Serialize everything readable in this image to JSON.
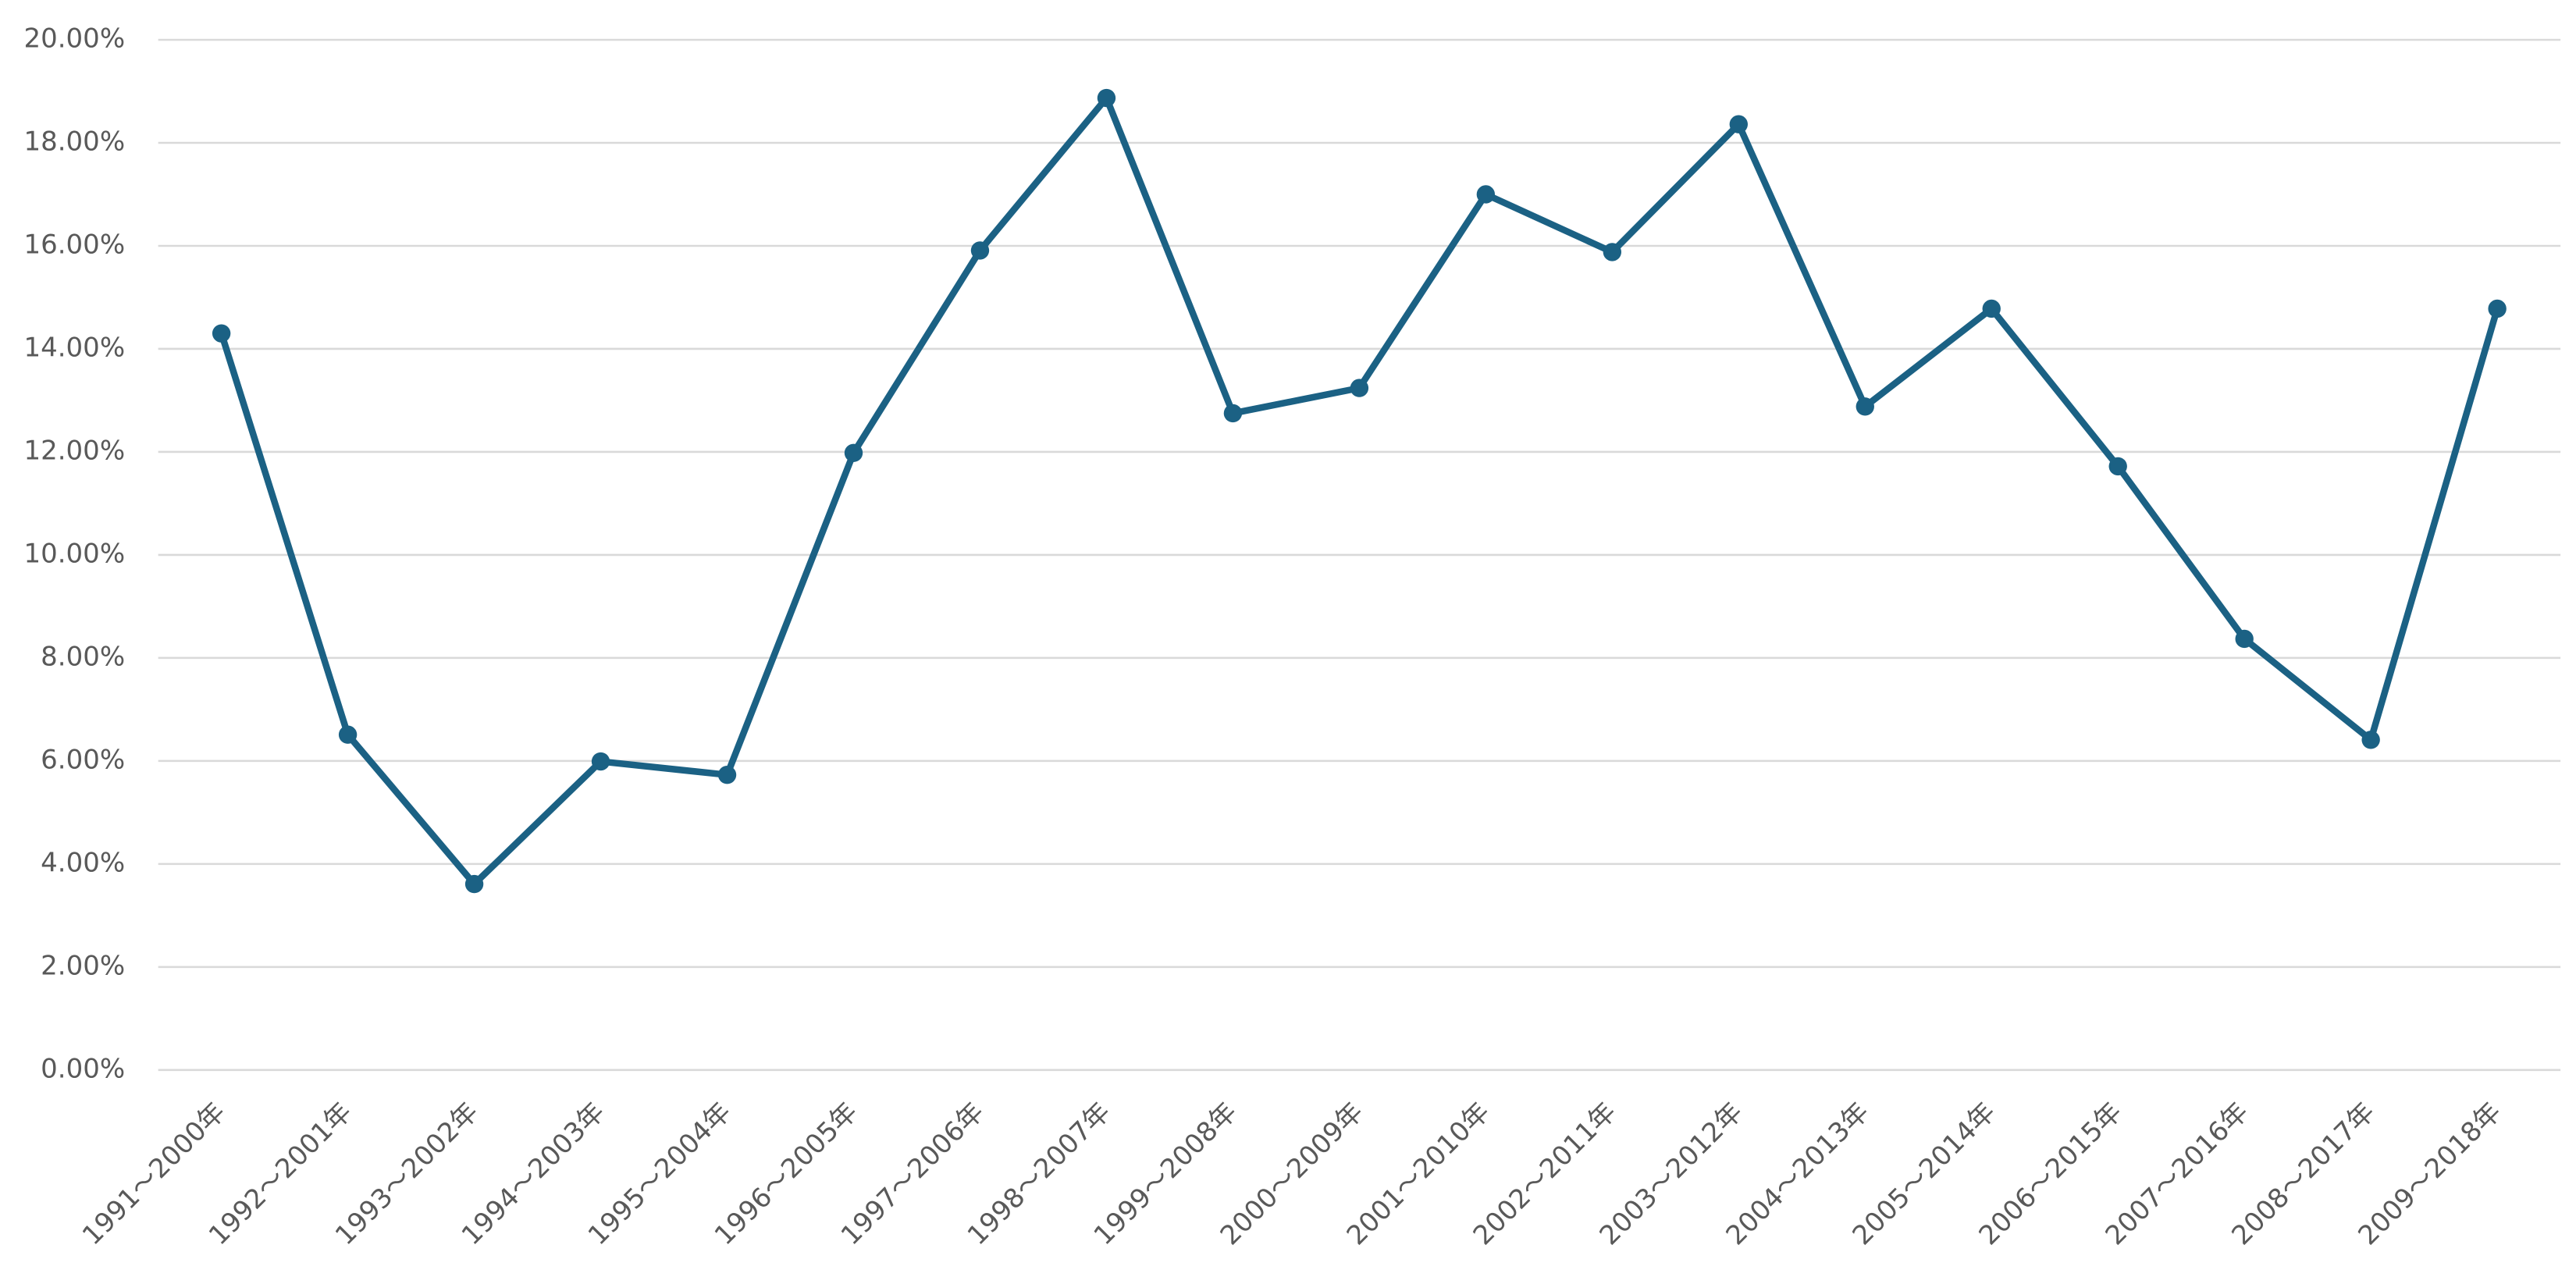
{
  "chart_data": {
    "type": "line",
    "categories": [
      "1991～2000年",
      "1992～2001年",
      "1993～2002年",
      "1994～2003年",
      "1995～2004年",
      "1996～2005年",
      "1997～2006年",
      "1998～2007年",
      "1999～2008年",
      "2000～2009年",
      "2001～2010年",
      "2002～2011年",
      "2003～2012年",
      "2004～2013年",
      "2005～2014年",
      "2006～2015年",
      "2007～2016年",
      "2008～2017年",
      "2009～2018年"
    ],
    "values": [
      14.3,
      6.51,
      3.61,
      5.99,
      5.73,
      11.98,
      15.91,
      18.87,
      12.75,
      13.24,
      17.0,
      15.88,
      18.36,
      12.88,
      14.78,
      11.72,
      8.37,
      6.41,
      14.78
    ],
    "color": "#1b6184",
    "ylim": [
      0,
      20
    ],
    "yticks": [
      {
        "value": 0,
        "label": "0.00%"
      },
      {
        "value": 2,
        "label": "2.00%"
      },
      {
        "value": 4,
        "label": "4.00%"
      },
      {
        "value": 6,
        "label": "6.00%"
      },
      {
        "value": 8,
        "label": "8.00%"
      },
      {
        "value": 10,
        "label": "10.00%"
      },
      {
        "value": 12,
        "label": "12.00%"
      },
      {
        "value": 14,
        "label": "14.00%"
      },
      {
        "value": 16,
        "label": "16.00%"
      },
      {
        "value": 18,
        "label": "18.00%"
      },
      {
        "value": 20,
        "label": "20.00%"
      }
    ],
    "grid": true
  }
}
